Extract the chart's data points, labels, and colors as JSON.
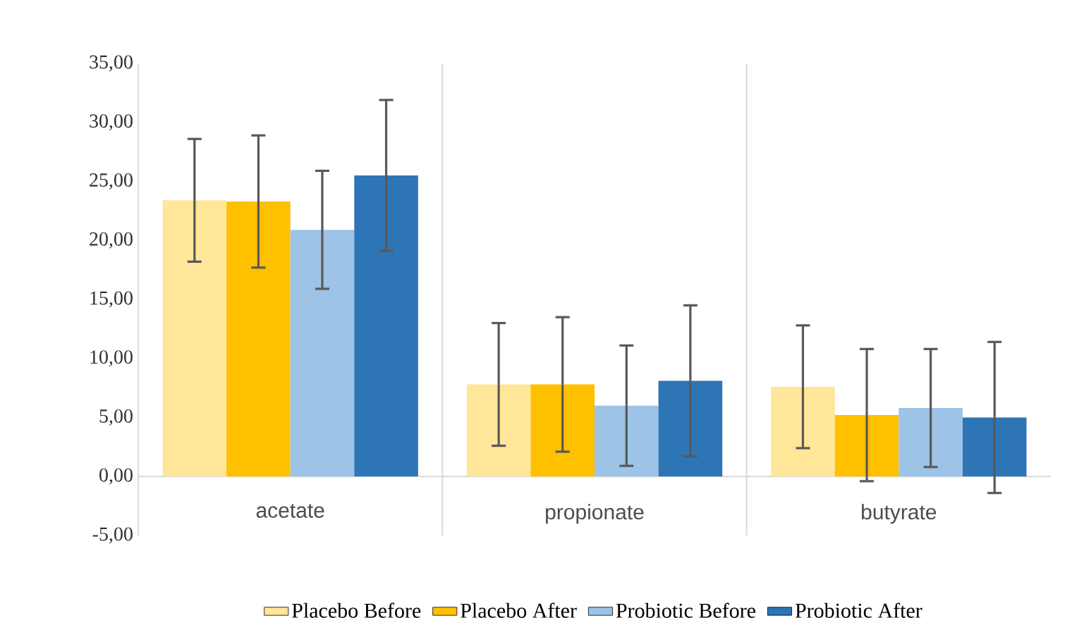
{
  "chart_data": {
    "type": "bar",
    "categories": [
      "acetate",
      "propionate",
      "butyrate"
    ],
    "series": [
      {
        "name": "Placebo Before",
        "color": "#ffe699",
        "values": [
          23.4,
          7.8,
          7.6
        ],
        "errors": [
          5.2,
          5.2,
          5.2
        ]
      },
      {
        "name": "Placebo After",
        "color": "#ffc000",
        "values": [
          23.3,
          7.8,
          5.2
        ],
        "errors": [
          5.6,
          5.7,
          5.6
        ]
      },
      {
        "name": "Probiotic Before",
        "color": "#9dc3e6",
        "values": [
          20.9,
          6.0,
          5.8
        ],
        "errors": [
          5.0,
          5.1,
          5.0
        ]
      },
      {
        "name": "Probiotic After",
        "color": "#2e75b6",
        "values": [
          25.5,
          8.1,
          5.0
        ],
        "errors": [
          6.4,
          6.4,
          6.4
        ]
      }
    ],
    "ylim": [
      -5,
      35
    ],
    "yticks": [
      {
        "value": -5,
        "label": "-5,00"
      },
      {
        "value": 0,
        "label": "0,00"
      },
      {
        "value": 5,
        "label": "5,00"
      },
      {
        "value": 10,
        "label": "10,00"
      },
      {
        "value": 15,
        "label": "15,00"
      },
      {
        "value": 20,
        "label": "20,00"
      },
      {
        "value": 25,
        "label": "25,00"
      },
      {
        "value": 30,
        "label": "30,00"
      },
      {
        "value": 35,
        "label": "35,00"
      }
    ],
    "grid": "x",
    "legend": "bottom"
  }
}
